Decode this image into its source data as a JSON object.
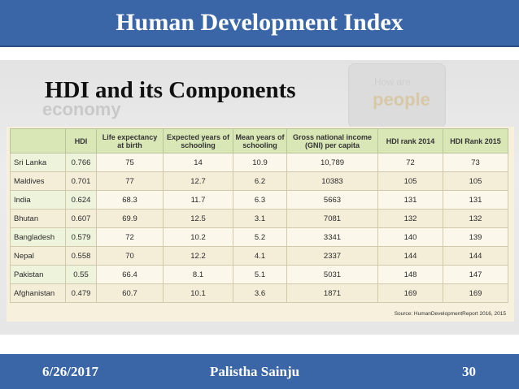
{
  "slide": {
    "title": "Human Development Index",
    "subtitle": "HDI and its Components",
    "background_words": {
      "economy": "economy",
      "how_are": "How are",
      "people": "people"
    }
  },
  "table": {
    "headers": [
      "",
      "HDI",
      "Life expectancy at birth",
      "Expected years of schooling",
      "Mean years of schooling",
      "Gross national income (GNI) per capita",
      "HDI rank 2014",
      "HDI Rank 2015"
    ],
    "rows": [
      [
        "Sri Lanka",
        "0.766",
        "75",
        "14",
        "10.9",
        "10,789",
        "72",
        "73"
      ],
      [
        "Maldives",
        "0.701",
        "77",
        "12.7",
        "6.2",
        "10383",
        "105",
        "105"
      ],
      [
        "India",
        "0.624",
        "68.3",
        "11.7",
        "6.3",
        "5663",
        "131",
        "131"
      ],
      [
        "Bhutan",
        "0.607",
        "69.9",
        "12.5",
        "3.1",
        "7081",
        "132",
        "132"
      ],
      [
        "Bangladesh",
        "0.579",
        "72",
        "10.2",
        "5.2",
        "3341",
        "140",
        "139"
      ],
      [
        "Nepal",
        "0.558",
        "70",
        "12.2",
        "4.1",
        "2337",
        "144",
        "144"
      ],
      [
        "Pakistan",
        "0.55",
        "66.4",
        "8.1",
        "5.1",
        "5031",
        "148",
        "147"
      ],
      [
        "Afghanistan",
        "0.479",
        "60.7",
        "10.1",
        "3.6",
        "1871",
        "169",
        "169"
      ]
    ],
    "source": "Source: HumanDevelopmentReport 2016, 2015"
  },
  "footer": {
    "date": "6/26/2017",
    "author": "Palistha Sainju",
    "page": "30"
  },
  "colors": {
    "bar": "#3a66a8",
    "table_header": "#d9e6b6",
    "table_body": "#f6f0dd"
  }
}
